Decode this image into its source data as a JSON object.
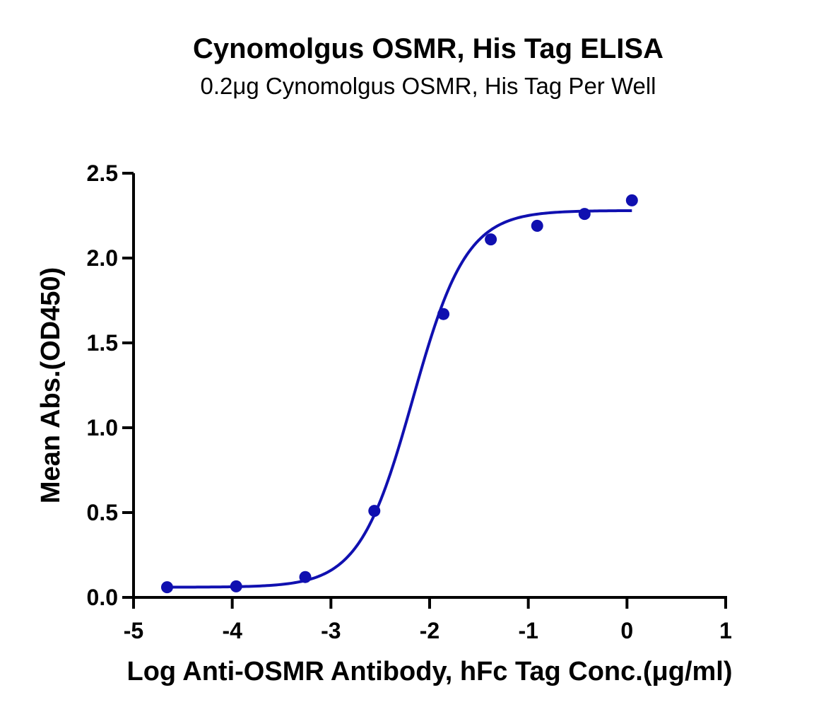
{
  "chart_data": {
    "type": "scatter",
    "title": "Cynomolgus OSMR, His Tag ELISA",
    "subtitle": "0.2μg Cynomolgus OSMR, His Tag Per Well",
    "xlabel": "Log Anti-OSMR Antibody, hFc Tag Conc.(μg/ml)",
    "ylabel": "Mean Abs.(OD450)",
    "xlim": [
      -5,
      1
    ],
    "ylim": [
      0,
      2.5
    ],
    "x_ticks": [
      "-5",
      "-4",
      "-3",
      "-2",
      "-1",
      "0",
      "1"
    ],
    "y_ticks": [
      "0.0",
      "0.5",
      "1.0",
      "1.5",
      "2.0",
      "2.5"
    ],
    "grid": false,
    "series": [
      {
        "points": [
          {
            "x": -4.66,
            "y": 0.06
          },
          {
            "x": -3.96,
            "y": 0.065
          },
          {
            "x": -3.26,
            "y": 0.12
          },
          {
            "x": -2.56,
            "y": 0.51
          },
          {
            "x": -1.86,
            "y": 1.67
          },
          {
            "x": -1.38,
            "y": 2.11
          },
          {
            "x": -0.91,
            "y": 2.19
          },
          {
            "x": -0.43,
            "y": 2.26
          },
          {
            "x": 0.05,
            "y": 2.34
          }
        ],
        "fit": {
          "model": "4PL",
          "bottom": 0.06,
          "top": 2.28,
          "log_ec50": -2.17,
          "hill": 1.6,
          "x_range": [
            -4.66,
            0.05
          ]
        }
      }
    ],
    "colors": {
      "series": "#1010b0",
      "axis": "#000000"
    }
  }
}
